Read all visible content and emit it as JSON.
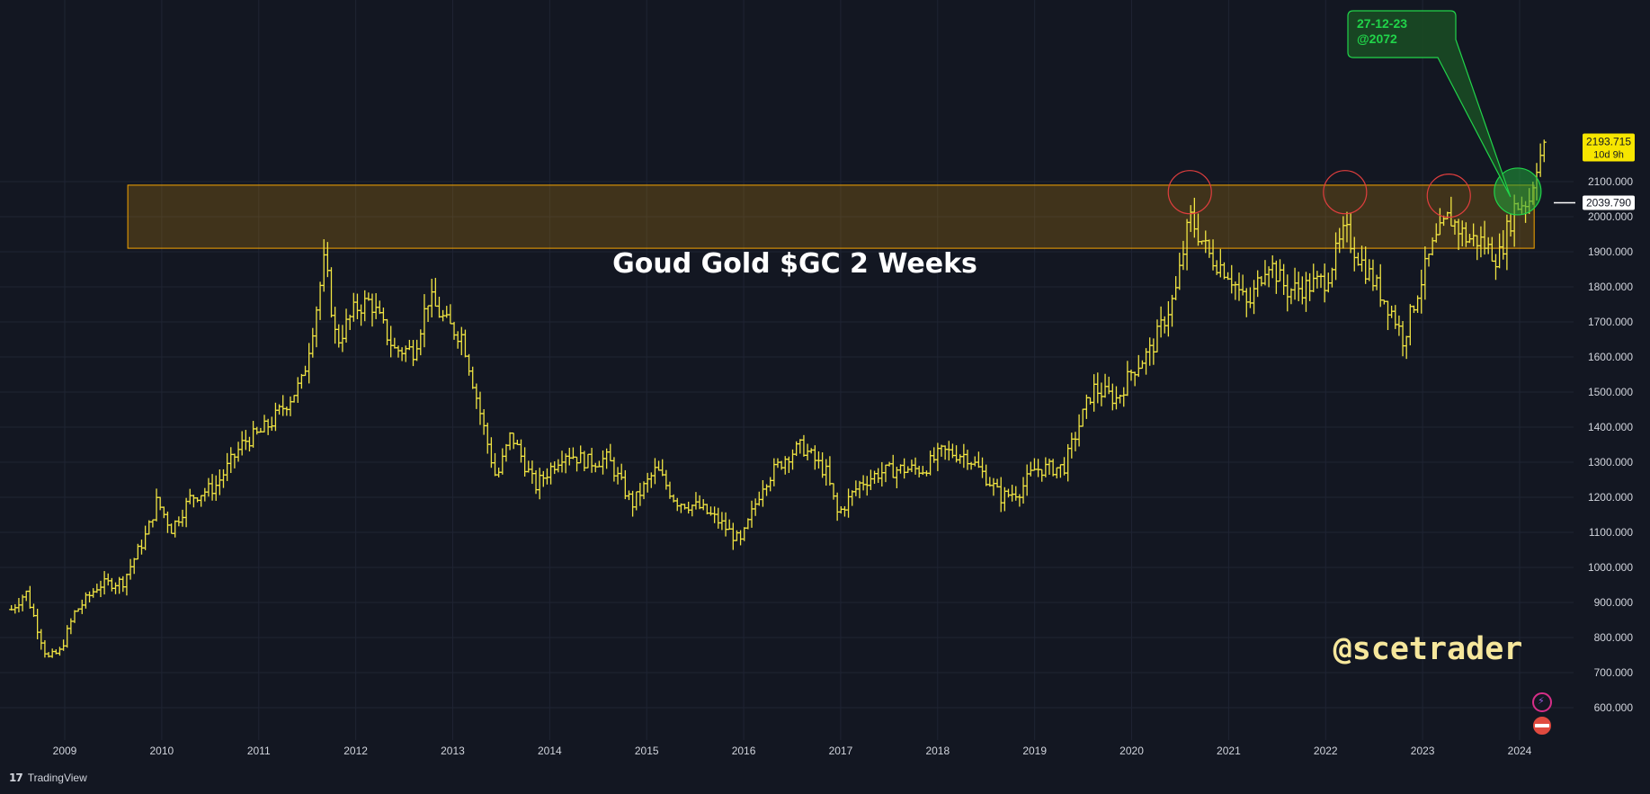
{
  "chart_data": {
    "type": "ohlc-bar",
    "title": "Goud Gold $GC 2 Weeks",
    "watermark": "@scetrader",
    "y_axis": {
      "ticks": [
        "2100.000",
        "2000.000",
        "1900.000",
        "1800.000",
        "1700.000",
        "1600.000",
        "1500.000",
        "1400.000",
        "1300.000",
        "1200.000",
        "1100.000",
        "1000.000",
        "900.000",
        "800.000",
        "700.000",
        "600.000"
      ],
      "range": [
        520,
        2220
      ]
    },
    "x_axis": {
      "ticks": [
        "2009",
        "2010",
        "2011",
        "2012",
        "2013",
        "2014",
        "2015",
        "2016",
        "2017",
        "2018",
        "2019",
        "2020",
        "2021",
        "2022",
        "2023",
        "2024"
      ],
      "range": [
        2008.45,
        2024.85
      ]
    },
    "current_price": "2193.715",
    "countdown": "10d 9h",
    "crosshair_price": "2039.790",
    "resistance_zone": {
      "from": 1910,
      "to": 2090,
      "x_from": 2009.65,
      "x_to": 2024.15,
      "color": "#f7a600"
    },
    "annotation": {
      "lines": [
        "27-12-23",
        "@2072"
      ],
      "color": "#21d44a"
    },
    "circles_red": [
      {
        "x": 2020.6,
        "y": 2070
      },
      {
        "x": 2022.2,
        "y": 2070
      },
      {
        "x": 2023.27,
        "y": 2060
      }
    ],
    "circle_green": {
      "x": 2023.98,
      "y": 2072
    },
    "series_color": "#f0e442",
    "keypoints": [
      [
        2008.45,
        880
      ],
      [
        2008.6,
        930
      ],
      [
        2008.82,
        740
      ],
      [
        2008.95,
        760
      ],
      [
        2009.1,
        870
      ],
      [
        2009.35,
        950
      ],
      [
        2009.6,
        960
      ],
      [
        2009.85,
        1100
      ],
      [
        2009.95,
        1190
      ],
      [
        2010.1,
        1110
      ],
      [
        2010.3,
        1200
      ],
      [
        2010.55,
        1230
      ],
      [
        2010.85,
        1360
      ],
      [
        2011.0,
        1380
      ],
      [
        2011.15,
        1420
      ],
      [
        2011.45,
        1530
      ],
      [
        2011.6,
        1750
      ],
      [
        2011.68,
        1880
      ],
      [
        2011.8,
        1640
      ],
      [
        2012.0,
        1740
      ],
      [
        2012.15,
        1760
      ],
      [
        2012.4,
        1620
      ],
      [
        2012.6,
        1620
      ],
      [
        2012.75,
        1770
      ],
      [
        2012.95,
        1690
      ],
      [
        2013.1,
        1660
      ],
      [
        2013.3,
        1420
      ],
      [
        2013.45,
        1250
      ],
      [
        2013.6,
        1380
      ],
      [
        2013.85,
        1230
      ],
      [
        2014.15,
        1330
      ],
      [
        2014.4,
        1300
      ],
      [
        2014.6,
        1310
      ],
      [
        2014.85,
        1180
      ],
      [
        2015.1,
        1280
      ],
      [
        2015.3,
        1190
      ],
      [
        2015.55,
        1170
      ],
      [
        2015.75,
        1130
      ],
      [
        2015.97,
        1070
      ],
      [
        2016.2,
        1240
      ],
      [
        2016.45,
        1320
      ],
      [
        2016.6,
        1345
      ],
      [
        2016.85,
        1270
      ],
      [
        2016.97,
        1150
      ],
      [
        2017.2,
        1240
      ],
      [
        2017.4,
        1270
      ],
      [
        2017.6,
        1280
      ],
      [
        2017.85,
        1280
      ],
      [
        2018.05,
        1330
      ],
      [
        2018.3,
        1320
      ],
      [
        2018.55,
        1240
      ],
      [
        2018.65,
        1200
      ],
      [
        2018.85,
        1220
      ],
      [
        2019.0,
        1280
      ],
      [
        2019.3,
        1285
      ],
      [
        2019.45,
        1400
      ],
      [
        2019.6,
        1510
      ],
      [
        2019.85,
        1480
      ],
      [
        2020.0,
        1560
      ],
      [
        2020.2,
        1620
      ],
      [
        2020.45,
        1780
      ],
      [
        2020.6,
        2000
      ],
      [
        2020.8,
        1890
      ],
      [
        2021.0,
        1840
      ],
      [
        2021.2,
        1740
      ],
      [
        2021.4,
        1880
      ],
      [
        2021.6,
        1790
      ],
      [
        2021.8,
        1800
      ],
      [
        2022.0,
        1820
      ],
      [
        2022.2,
        1960
      ],
      [
        2022.35,
        1880
      ],
      [
        2022.55,
        1790
      ],
      [
        2022.7,
        1720
      ],
      [
        2022.8,
        1650
      ],
      [
        2022.95,
        1790
      ],
      [
        2023.1,
        1910
      ],
      [
        2023.27,
        2000
      ],
      [
        2023.45,
        1940
      ],
      [
        2023.6,
        1930
      ],
      [
        2023.78,
        1880
      ],
      [
        2023.95,
        2030
      ],
      [
        2024.1,
        2050
      ],
      [
        2024.18,
        2160
      ],
      [
        2024.25,
        2190
      ]
    ]
  },
  "footer": {
    "brand": "TradingView",
    "brand_icon": "17"
  }
}
